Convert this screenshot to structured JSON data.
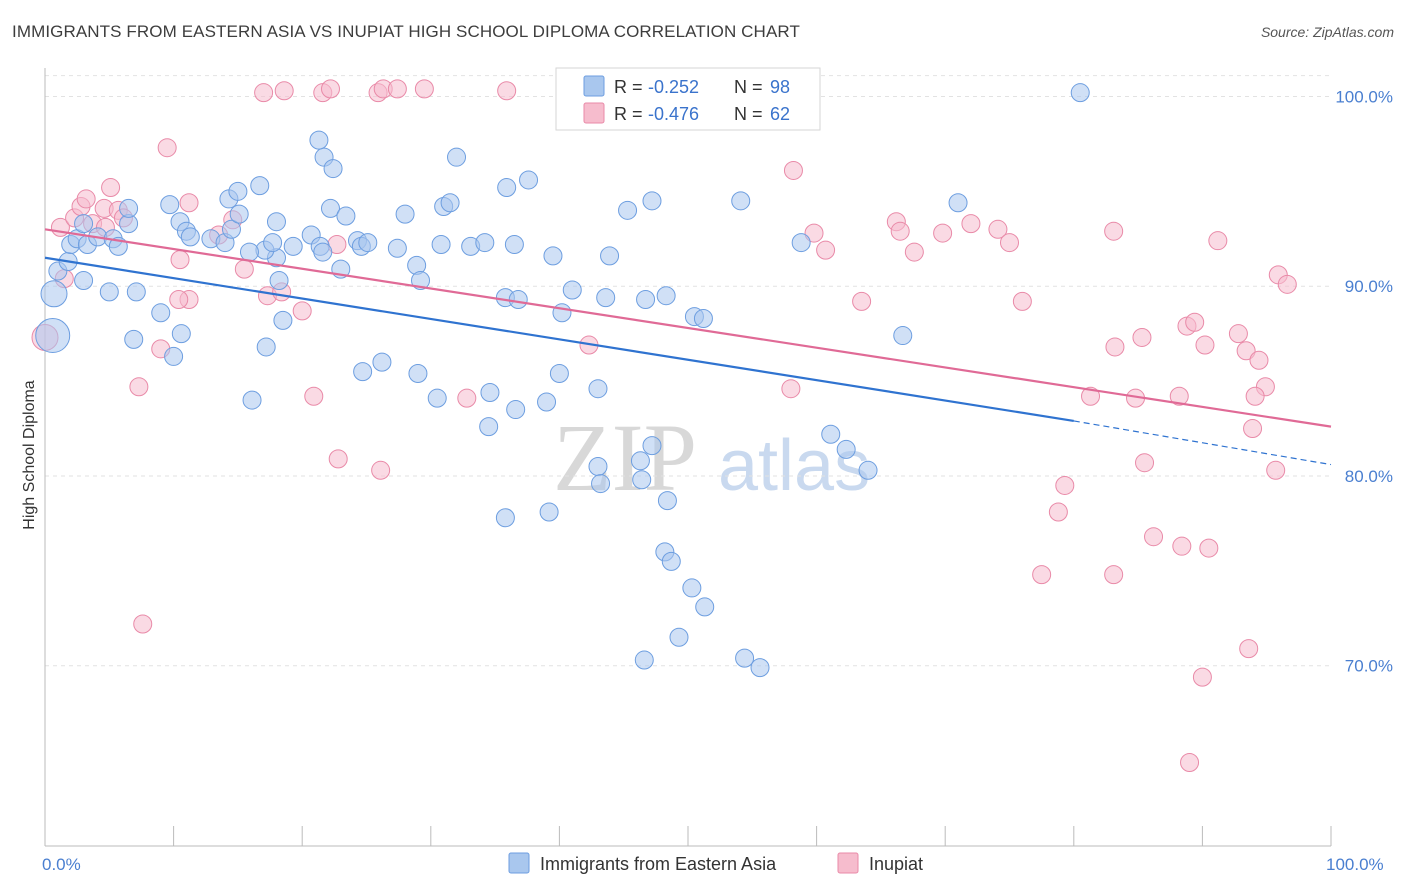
{
  "title": "IMMIGRANTS FROM EASTERN ASIA VS INUPIAT HIGH SCHOOL DIPLOMA CORRELATION CHART",
  "source": "Source: ZipAtlas.com",
  "watermark": {
    "zip": "ZIP",
    "atlas": "atlas"
  },
  "colors": {
    "blue_fill": "#a9c7ee",
    "blue_stroke": "#6d9ee0",
    "blue_line": "#2f73d0",
    "pink_fill": "#f6bccd",
    "pink_stroke": "#e98aa8",
    "pink_line": "#e06a96",
    "axis_label": "#4a7fd0"
  },
  "stats": {
    "blue": {
      "r_label": "R = ",
      "r": "-0.252",
      "n_label": "N = ",
      "n": "98"
    },
    "pink": {
      "r_label": "R = ",
      "r": "-0.476",
      "n_label": "N = ",
      "n": "62"
    }
  },
  "chart_data": {
    "type": "scatter",
    "xlabel": "",
    "ylabel": "High School Diploma",
    "x_tick_labels": [
      "0.0%",
      "100.0%"
    ],
    "y_tick_labels": [
      "100.0%",
      "90.0%",
      "80.0%",
      "70.0%"
    ],
    "y_ticks": [
      100,
      90,
      80,
      70
    ],
    "xlim": [
      0,
      100
    ],
    "ylim": [
      60.5,
      101.5
    ],
    "grid": true,
    "legend_position": "top-center",
    "series": [
      {
        "name": "Immigrants from Eastern Asia",
        "trend": {
          "x0": 0,
          "y0": 91.5,
          "x1": 80,
          "y1": 82.9,
          "dash_to": 100,
          "dash_y": 80.6
        },
        "points": [
          [
            1,
            90.8,
            8
          ],
          [
            0.7,
            89.6,
            12
          ],
          [
            0.6,
            87.4,
            16
          ],
          [
            1.8,
            91.3,
            8
          ],
          [
            2,
            92.2,
            8
          ],
          [
            2.5,
            92.5,
            8
          ],
          [
            3.3,
            92.2,
            8
          ],
          [
            4.1,
            92.6,
            8
          ],
          [
            5.3,
            92.5,
            8
          ],
          [
            5.7,
            92.1,
            8
          ],
          [
            3,
            90.3,
            8
          ],
          [
            5,
            89.7,
            8
          ],
          [
            7.1,
            89.7,
            8
          ],
          [
            3,
            93.3,
            8
          ],
          [
            6.5,
            93.3,
            8
          ],
          [
            6.5,
            94.1,
            8
          ],
          [
            9.7,
            94.3,
            8
          ],
          [
            10.5,
            93.4,
            8
          ],
          [
            11,
            92.9,
            8
          ],
          [
            11.3,
            92.6,
            8
          ],
          [
            12.9,
            92.5,
            8
          ],
          [
            14,
            92.3,
            8
          ],
          [
            14.5,
            93,
            8
          ],
          [
            14.3,
            94.6,
            8
          ],
          [
            15,
            95,
            8
          ],
          [
            15.1,
            93.8,
            8
          ],
          [
            16.7,
            95.3,
            8
          ],
          [
            18,
            93.4,
            8
          ],
          [
            18,
            91.5,
            8
          ],
          [
            19.3,
            92.1,
            8
          ],
          [
            20.7,
            92.7,
            8
          ],
          [
            21.4,
            92.1,
            8
          ],
          [
            21.6,
            91.8,
            8
          ],
          [
            17.1,
            91.9,
            8
          ],
          [
            15.9,
            91.8,
            8
          ],
          [
            18.2,
            90.3,
            8
          ],
          [
            17.7,
            92.3,
            8
          ],
          [
            21.7,
            96.8,
            8
          ],
          [
            22.2,
            94.1,
            8
          ],
          [
            21.3,
            97.7,
            8
          ],
          [
            22.4,
            96.2,
            8
          ],
          [
            23,
            90.9,
            8
          ],
          [
            23.4,
            93.7,
            8
          ],
          [
            24.3,
            92.4,
            8
          ],
          [
            24.6,
            92.1,
            8
          ],
          [
            25.1,
            92.3,
            8
          ],
          [
            27.4,
            92,
            8
          ],
          [
            28,
            93.8,
            8
          ],
          [
            28.9,
            91.1,
            8
          ],
          [
            29.2,
            90.3,
            8
          ],
          [
            30.8,
            92.2,
            8
          ],
          [
            31,
            94.2,
            8
          ],
          [
            31.5,
            94.4,
            8
          ],
          [
            32,
            96.8,
            8
          ],
          [
            33.1,
            92.1,
            8
          ],
          [
            34.2,
            92.3,
            8
          ],
          [
            35.8,
            89.4,
            8
          ],
          [
            36.8,
            89.3,
            8
          ],
          [
            35.9,
            95.2,
            8
          ],
          [
            36.5,
            92.2,
            8
          ],
          [
            37.6,
            95.6,
            8
          ],
          [
            39.5,
            91.6,
            8
          ],
          [
            40.2,
            88.6,
            8
          ],
          [
            41,
            89.8,
            8
          ],
          [
            43.9,
            91.6,
            8
          ],
          [
            43.6,
            89.4,
            8
          ],
          [
            45.3,
            94,
            8
          ],
          [
            47.2,
            94.5,
            8
          ],
          [
            48.3,
            89.5,
            8
          ],
          [
            50.5,
            88.4,
            8
          ],
          [
            51.2,
            88.3,
            8
          ],
          [
            50.9,
            99.9,
            8
          ],
          [
            52.5,
            99.6,
            8
          ],
          [
            54.1,
            94.5,
            8
          ],
          [
            55,
            99.8,
            8
          ],
          [
            42.9,
            100.7,
            8
          ],
          [
            58.8,
            92.3,
            8
          ],
          [
            46.7,
            89.3,
            8
          ],
          [
            9,
            88.6,
            8
          ],
          [
            10.6,
            87.5,
            8
          ],
          [
            6.9,
            87.2,
            8
          ],
          [
            18.5,
            88.2,
            8
          ],
          [
            10,
            86.3,
            8
          ],
          [
            17.2,
            86.8,
            8
          ],
          [
            16.1,
            84,
            8
          ],
          [
            26.2,
            86,
            8
          ],
          [
            24.7,
            85.5,
            8
          ],
          [
            29,
            85.4,
            8
          ],
          [
            30.5,
            84.1,
            8
          ],
          [
            34.6,
            84.4,
            8
          ],
          [
            40,
            85.4,
            8
          ],
          [
            43,
            84.6,
            8
          ],
          [
            36.6,
            83.5,
            8
          ],
          [
            34.5,
            82.6,
            8
          ],
          [
            39,
            83.9,
            8
          ],
          [
            43,
            80.5,
            8
          ],
          [
            43.2,
            79.6,
            8
          ],
          [
            46.3,
            80.8,
            8
          ],
          [
            46.4,
            79.8,
            8
          ],
          [
            47.2,
            81.6,
            8
          ],
          [
            48.4,
            78.7,
            8
          ],
          [
            39.2,
            78.1,
            8
          ],
          [
            35.8,
            77.8,
            8
          ],
          [
            48.2,
            76,
            8
          ],
          [
            48.7,
            75.5,
            8
          ],
          [
            50.3,
            74.1,
            8
          ],
          [
            51.3,
            73.1,
            8
          ],
          [
            46.6,
            70.3,
            8
          ],
          [
            49.3,
            71.5,
            8
          ],
          [
            54.4,
            70.4,
            8
          ],
          [
            55.6,
            69.9,
            8
          ],
          [
            62.3,
            81.4,
            8
          ],
          [
            66.7,
            87.4,
            8
          ],
          [
            71,
            94.4,
            8
          ],
          [
            80.5,
            100.2,
            8
          ],
          [
            61.1,
            82.2,
            8
          ],
          [
            64,
            80.3,
            8
          ]
        ]
      },
      {
        "name": "Inupiat",
        "trend": {
          "x0": 0,
          "y0": 93.0,
          "x1": 100,
          "y1": 82.6
        },
        "points": [
          [
            0,
            87.3,
            12
          ],
          [
            1.2,
            93.1,
            8
          ],
          [
            1.5,
            90.4,
            8
          ],
          [
            2.3,
            93.6,
            8
          ],
          [
            2.8,
            94.2,
            8
          ],
          [
            3.2,
            94.6,
            8
          ],
          [
            3.7,
            93.3,
            8
          ],
          [
            4.6,
            94.1,
            8
          ],
          [
            4.7,
            93.1,
            8
          ],
          [
            5.1,
            95.2,
            8
          ],
          [
            5.7,
            94,
            8
          ],
          [
            6.1,
            93.6,
            8
          ],
          [
            9.5,
            97.3,
            8
          ],
          [
            11.2,
            94.4,
            8
          ],
          [
            11.2,
            89.3,
            8
          ],
          [
            10.4,
            89.3,
            8
          ],
          [
            10.5,
            91.4,
            8
          ],
          [
            13.5,
            92.7,
            8
          ],
          [
            14.6,
            93.5,
            8
          ],
          [
            15.5,
            90.9,
            8
          ],
          [
            17.3,
            89.5,
            8
          ],
          [
            18.6,
            100.3,
            8
          ],
          [
            18.4,
            89.7,
            8
          ],
          [
            17,
            100.2,
            8
          ],
          [
            20,
            88.7,
            8
          ],
          [
            21.6,
            100.2,
            8
          ],
          [
            22.2,
            100.4,
            8
          ],
          [
            22.7,
            92.2,
            8
          ],
          [
            25.9,
            100.2,
            8
          ],
          [
            26.3,
            100.4,
            8
          ],
          [
            27.4,
            100.4,
            8
          ],
          [
            29.5,
            100.4,
            8
          ],
          [
            35.9,
            100.3,
            8
          ],
          [
            32.8,
            84.1,
            8
          ],
          [
            20.9,
            84.2,
            8
          ],
          [
            22.8,
            80.9,
            8
          ],
          [
            26.1,
            80.3,
            8
          ],
          [
            7.6,
            72.2,
            8
          ],
          [
            9,
            86.7,
            8
          ],
          [
            7.3,
            84.7,
            8
          ],
          [
            58.2,
            96.1,
            8
          ],
          [
            59.8,
            92.8,
            8
          ],
          [
            60.7,
            91.9,
            8
          ],
          [
            63.5,
            89.2,
            8
          ],
          [
            66.2,
            93.4,
            8
          ],
          [
            66.5,
            92.9,
            8
          ],
          [
            67.6,
            91.8,
            8
          ],
          [
            69.8,
            92.8,
            8
          ],
          [
            72,
            93.3,
            8
          ],
          [
            74.1,
            93,
            8
          ],
          [
            75,
            92.3,
            8
          ],
          [
            76,
            89.2,
            8
          ],
          [
            83.2,
            86.8,
            8
          ],
          [
            85.3,
            87.3,
            8
          ],
          [
            83.1,
            92.9,
            8
          ],
          [
            88.8,
            87.9,
            8
          ],
          [
            90.2,
            86.9,
            8
          ],
          [
            91.2,
            92.4,
            8
          ],
          [
            89.4,
            88.1,
            8
          ],
          [
            92.8,
            87.5,
            8
          ],
          [
            93.4,
            86.6,
            8
          ],
          [
            94.4,
            86.1,
            8
          ],
          [
            94.9,
            84.7,
            8
          ],
          [
            95.9,
            90.6,
            8
          ],
          [
            96.6,
            90.1,
            8
          ],
          [
            94.1,
            84.2,
            8
          ],
          [
            93.9,
            82.5,
            8
          ],
          [
            95.7,
            80.3,
            8
          ],
          [
            88.2,
            84.2,
            8
          ],
          [
            84.8,
            84.1,
            8
          ],
          [
            81.3,
            84.2,
            8
          ],
          [
            79.3,
            79.5,
            8
          ],
          [
            78.8,
            78.1,
            8
          ],
          [
            85.5,
            80.7,
            8
          ],
          [
            83.1,
            74.8,
            8
          ],
          [
            88.4,
            76.3,
            8
          ],
          [
            77.5,
            74.8,
            8
          ],
          [
            86.2,
            76.8,
            8
          ],
          [
            90.5,
            76.2,
            8
          ],
          [
            93.6,
            70.9,
            8
          ],
          [
            90,
            69.4,
            8
          ],
          [
            89,
            64.9,
            8
          ],
          [
            42.3,
            86.9,
            8
          ],
          [
            58,
            84.6,
            8
          ]
        ]
      }
    ]
  },
  "bottom_legend": [
    "Immigrants from Eastern Asia",
    "Inupiat"
  ]
}
